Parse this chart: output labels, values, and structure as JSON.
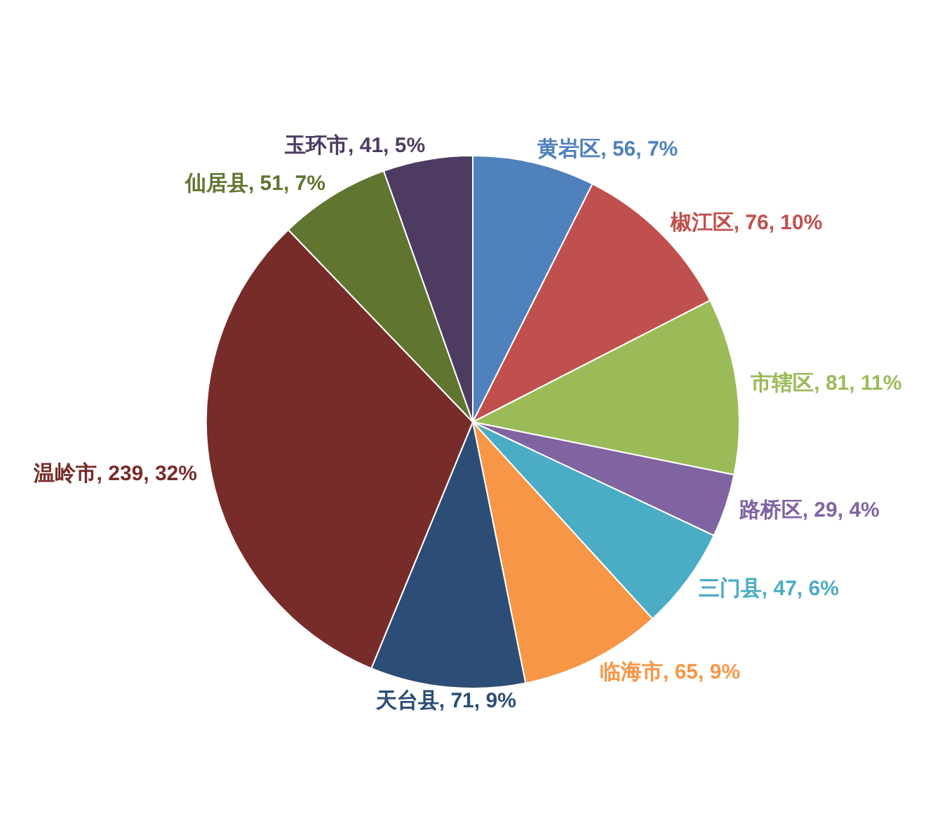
{
  "chart_data": {
    "type": "pie",
    "categories": [
      "黄岩区",
      "椒江区",
      "市辖区",
      "路桥区",
      "三门县",
      "临海市",
      "天台县",
      "温岭市",
      "仙居县",
      "玉环市"
    ],
    "values": [
      56,
      76,
      81,
      29,
      47,
      65,
      71,
      239,
      51,
      41
    ],
    "value_labels": [
      "56, 7%",
      "76, 10%",
      "81, 11%",
      "29, 4%",
      "47, 6%",
      "65, 9%",
      "71, 9%",
      "239, 32%",
      "51, 7%",
      "41, 5%"
    ],
    "colors": [
      "#4f81bd",
      "#c0504d",
      "#9bbb59",
      "#8064a2",
      "#4bacc6",
      "#f79646",
      "#2c4d75",
      "#772c2a",
      "#5f7530",
      "#4d3b62"
    ]
  }
}
